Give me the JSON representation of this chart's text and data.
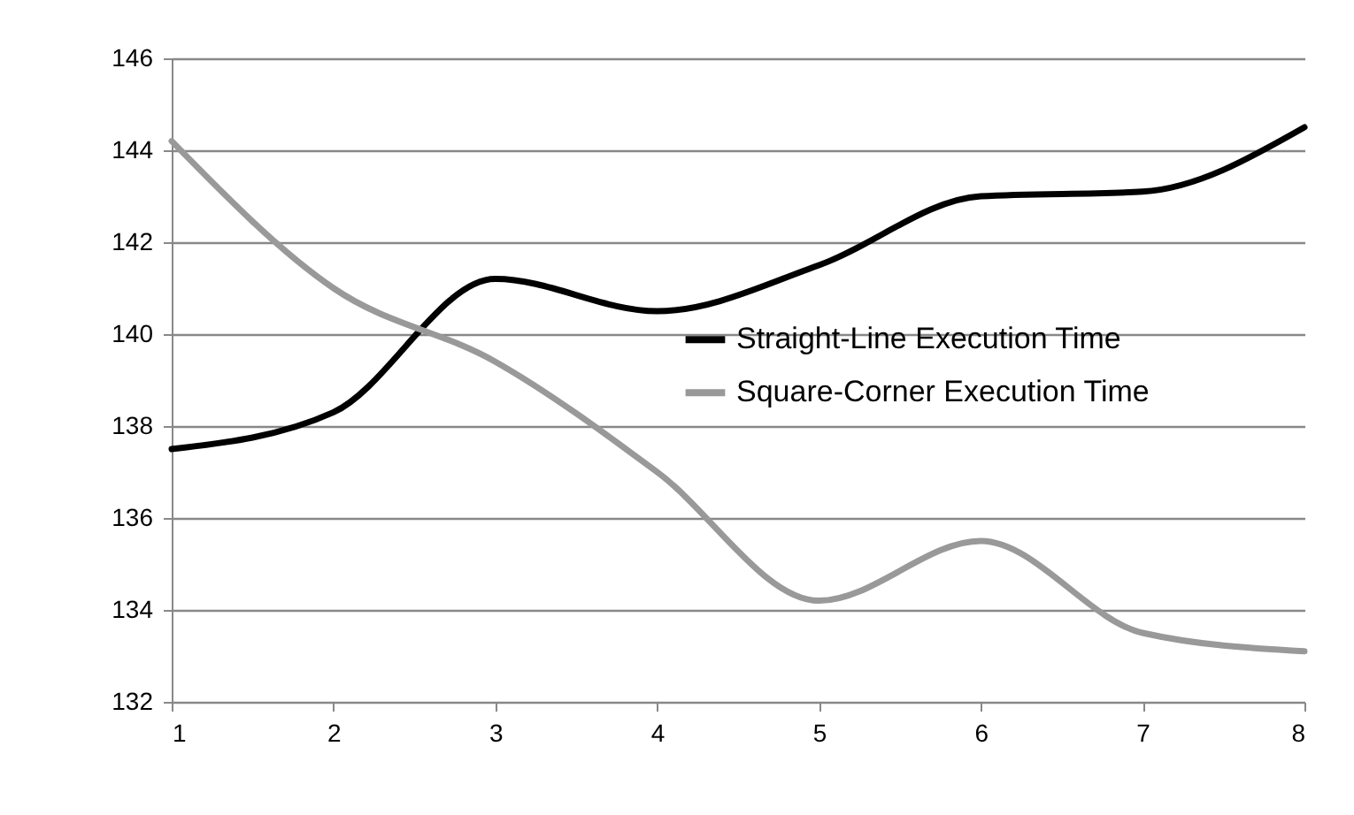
{
  "chart_data": {
    "type": "line",
    "x": [
      1,
      2,
      3,
      4,
      5,
      6,
      7,
      8
    ],
    "series": [
      {
        "name": "Straight-Line Execution Time",
        "color": "#000000",
        "values": [
          137.5,
          138.3,
          141.2,
          140.5,
          141.5,
          143,
          143.1,
          144.5
        ]
      },
      {
        "name": "Square-Corner Execution Time",
        "color": "#999999",
        "values": [
          144.2,
          141,
          139.4,
          137,
          134.2,
          135.5,
          133.5,
          133.1
        ]
      }
    ],
    "xlim": [
      1,
      8
    ],
    "xticks": [
      1,
      2,
      3,
      4,
      5,
      6,
      7,
      8
    ],
    "ylim": [
      132,
      146
    ],
    "yticks": [
      132,
      134,
      136,
      138,
      140,
      142,
      144,
      146
    ],
    "grid": "y",
    "legend": "right",
    "marker": "none",
    "line_style": "solid"
  }
}
